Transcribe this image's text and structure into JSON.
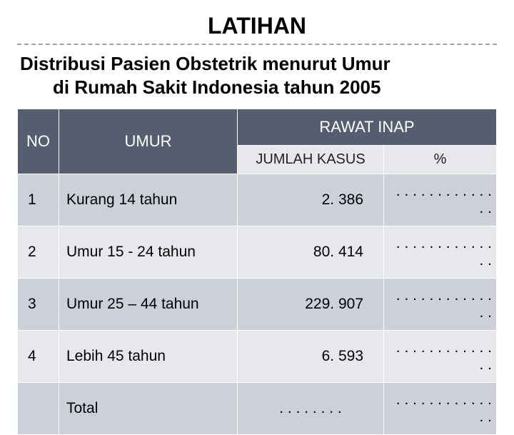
{
  "title": "LATIHAN",
  "subtitle_line1": "Distribusi Pasien Obstetrik menurut Umur",
  "subtitle_line2": "di Rumah Sakit Indonesia tahun 2005",
  "colors": {
    "header_bg": "#555e6f",
    "header_text": "#ffffff",
    "row_bg": "#ccd0d8",
    "row_alt_bg": "#e6e8ec",
    "dash": "#9aa3b0"
  },
  "table": {
    "columns": {
      "no": "NO",
      "umur": "UMUR",
      "rawat_inap": "RAWAT INAP",
      "jumlah_kasus": "JUMLAH KASUS",
      "persen": "%"
    },
    "rows": [
      {
        "no": "1",
        "umur": "Kurang 14 tahun",
        "jumlah": "2. 386",
        "persen": ". . . . . . . . . . . . . ."
      },
      {
        "no": "2",
        "umur": "Umur 15 - 24 tahun",
        "jumlah": "80. 414",
        "persen": ". . . . . . . . . . . . . ."
      },
      {
        "no": "3",
        "umur": "Umur 25 – 44 tahun",
        "jumlah": "229. 907",
        "persen": ". . . . . . . . . . . . . ."
      },
      {
        "no": "4",
        "umur": "Lebih 45 tahun",
        "jumlah": "6. 593",
        "persen": ". . . . . . . . . . . . . ."
      }
    ],
    "total": {
      "label": "Total",
      "jumlah": ". . . . . . . .",
      "persen": ". . . . . . . . . . . . . ."
    }
  }
}
